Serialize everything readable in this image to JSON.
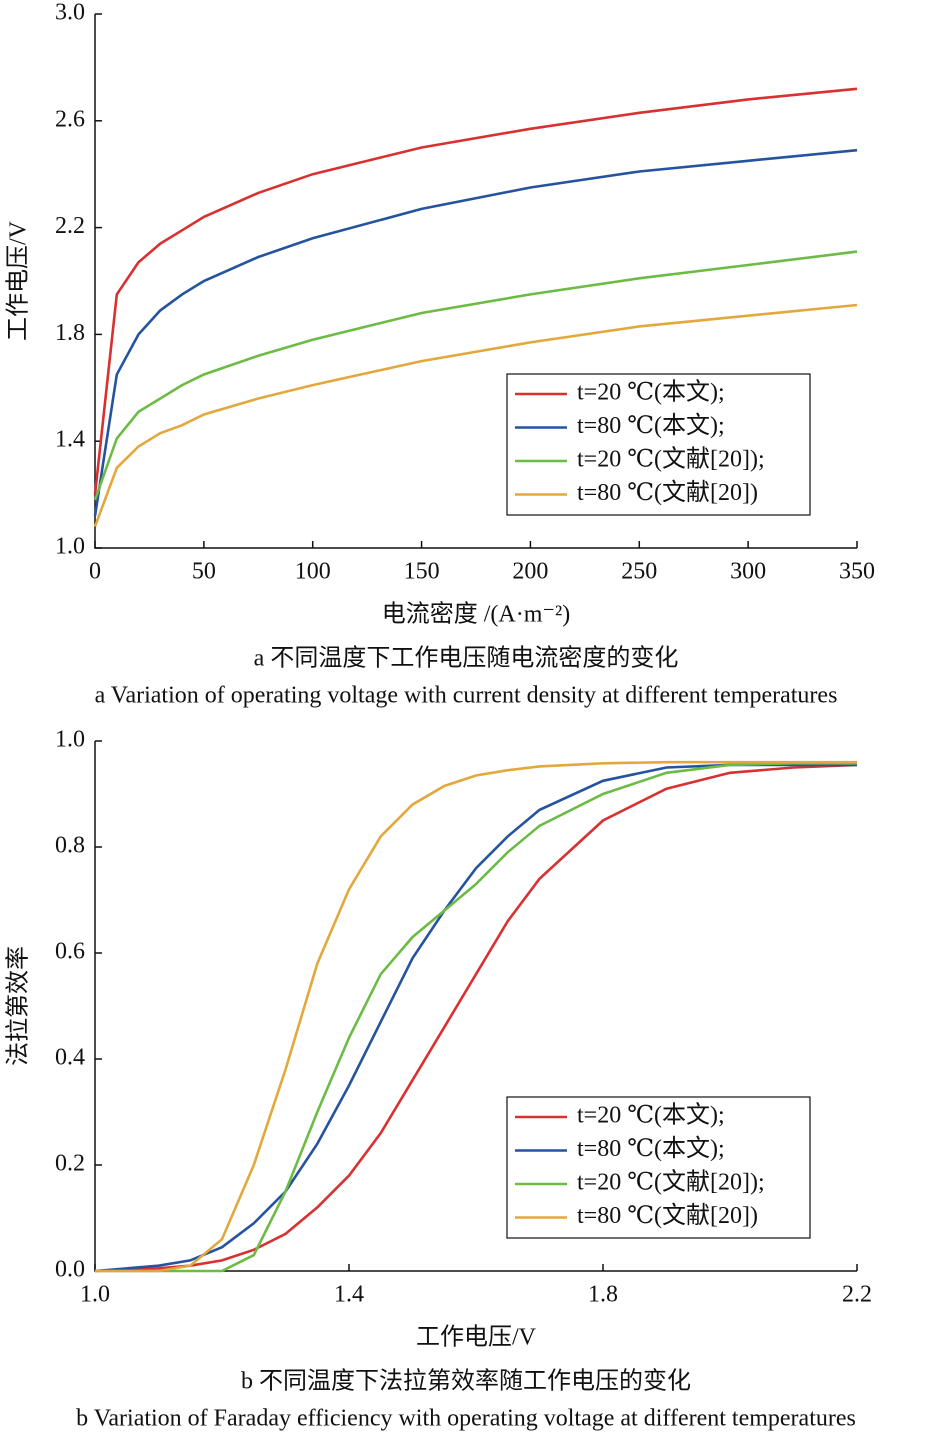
{
  "chart_data": [
    {
      "type": "line",
      "xlabel": "电流密度 /(A·m⁻²)",
      "ylabel": "工作电压/V",
      "caption": "a  不同温度下工作电压随电流密度的变化",
      "caption_en": "a  Variation of operating voltage with current density at different temperatures",
      "x": [
        0,
        10,
        20,
        30,
        40,
        50,
        75,
        100,
        150,
        200,
        250,
        300,
        350
      ],
      "xlim": [
        0,
        350
      ],
      "xticks": [
        0,
        50,
        100,
        150,
        200,
        250,
        300,
        350
      ],
      "ylim": [
        1,
        3
      ],
      "yticks": [
        {
          "value": 1,
          "label": "1.0"
        },
        1.4,
        1.8,
        2.2,
        2.6,
        {
          "value": 3,
          "label": "3.0"
        }
      ],
      "legend": "lower right",
      "series": [
        {
          "name": "t=20 ℃(本文);",
          "color": "#d93030",
          "values": [
            1.2,
            1.95,
            2.07,
            2.14,
            2.19,
            2.24,
            2.33,
            2.4,
            2.5,
            2.57,
            2.63,
            2.68,
            2.72
          ]
        },
        {
          "name": "t=80 ℃(本文);",
          "color": "#2553a0",
          "values": [
            1.12,
            1.65,
            1.8,
            1.89,
            1.95,
            2.0,
            2.09,
            2.16,
            2.27,
            2.35,
            2.41,
            2.45,
            2.49
          ]
        },
        {
          "name": "t=20 ℃(文献[20]);",
          "color": "#6cbb45",
          "values": [
            1.18,
            1.41,
            1.51,
            1.56,
            1.61,
            1.65,
            1.72,
            1.78,
            1.88,
            1.95,
            2.01,
            2.06,
            2.11
          ]
        },
        {
          "name": "t=80 ℃(文献[20])",
          "color": "#e3a83d",
          "values": [
            1.08,
            1.3,
            1.38,
            1.43,
            1.46,
            1.5,
            1.56,
            1.61,
            1.7,
            1.77,
            1.83,
            1.87,
            1.91
          ]
        }
      ]
    },
    {
      "type": "line",
      "xlabel": "工作电压/V",
      "ylabel": "法拉第效率",
      "caption": "b  不同温度下法拉第效率随工作电压的变化",
      "caption_en": "b  Variation of Faraday efficiency with operating voltage at different temperatures",
      "x": [
        1.0,
        1.1,
        1.15,
        1.2,
        1.25,
        1.3,
        1.35,
        1.4,
        1.45,
        1.5,
        1.55,
        1.6,
        1.65,
        1.7,
        1.8,
        1.9,
        2.0,
        2.1,
        2.2
      ],
      "xlim": [
        1,
        2.2
      ],
      "xticks": [
        {
          "value": 1,
          "label": "1.0"
        },
        1.4,
        1.8,
        2.2
      ],
      "ylim": [
        0,
        1
      ],
      "yticks": [
        {
          "value": 0,
          "label": "0.0"
        },
        0.2,
        0.4,
        0.6,
        0.8,
        {
          "value": 1,
          "label": "1.0"
        }
      ],
      "legend": "lower right",
      "series": [
        {
          "name": "t=20 ℃(本文);",
          "color": "#d93030",
          "values": [
            0,
            0.005,
            0.01,
            0.02,
            0.04,
            0.07,
            0.12,
            0.18,
            0.26,
            0.36,
            0.46,
            0.56,
            0.66,
            0.74,
            0.85,
            0.91,
            0.94,
            0.95,
            0.955
          ]
        },
        {
          "name": "t=80 ℃(本文);",
          "color": "#2553a0",
          "values": [
            0,
            0.01,
            0.02,
            0.045,
            0.09,
            0.15,
            0.24,
            0.35,
            0.47,
            0.59,
            0.68,
            0.76,
            0.82,
            0.87,
            0.925,
            0.95,
            0.955,
            0.955,
            0.955
          ]
        },
        {
          "name": "t=20 ℃(文献[20]);",
          "color": "#6cbb45",
          "values": [
            0,
            0,
            0,
            0,
            0.03,
            0.15,
            0.3,
            0.44,
            0.56,
            0.63,
            0.68,
            0.73,
            0.79,
            0.84,
            0.9,
            0.94,
            0.955,
            0.958,
            0.958
          ]
        },
        {
          "name": "t=80 ℃(文献[20])",
          "color": "#e3a83d",
          "values": [
            0,
            0,
            0.01,
            0.06,
            0.2,
            0.38,
            0.58,
            0.72,
            0.82,
            0.88,
            0.915,
            0.935,
            0.945,
            0.952,
            0.958,
            0.96,
            0.96,
            0.96,
            0.96
          ]
        }
      ]
    }
  ]
}
